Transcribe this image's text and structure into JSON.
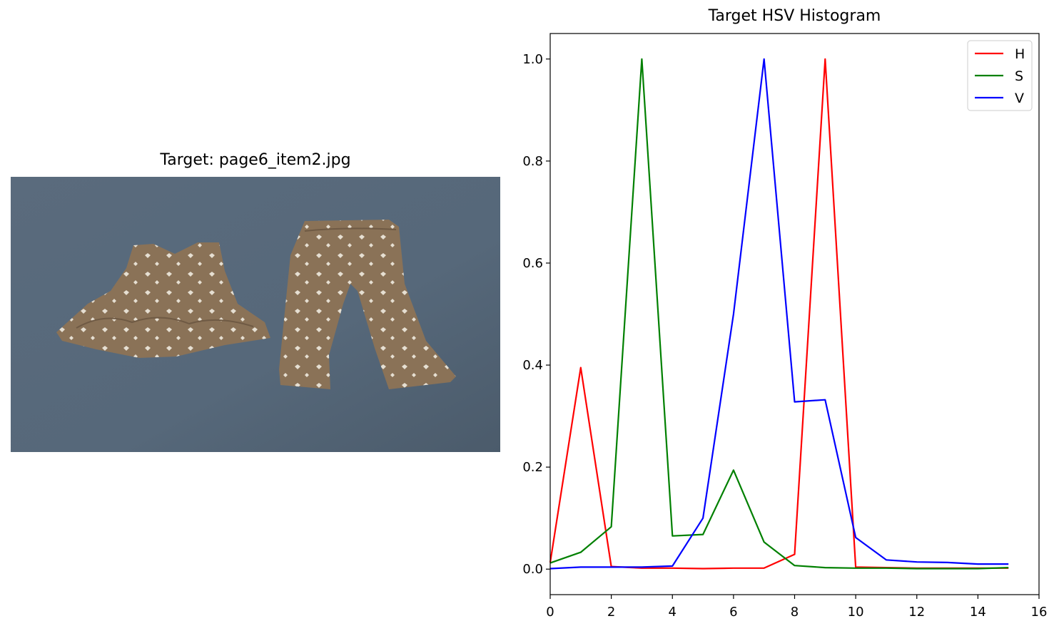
{
  "photo_panel": {
    "title": "Target: page6_item2.jpg",
    "colors": {
      "background": "#5b6c7d",
      "garment": "#8a7257",
      "print": "#e6dfd2"
    }
  },
  "chart_data": {
    "type": "line",
    "title": "Target HSV Histogram",
    "xlabel": "",
    "ylabel": "",
    "xlim": [
      0,
      16
    ],
    "ylim": [
      -0.05,
      1.05
    ],
    "xticks": [
      0,
      2,
      4,
      6,
      8,
      10,
      12,
      14,
      16
    ],
    "yticks": [
      0.0,
      0.2,
      0.4,
      0.6,
      0.8,
      1.0
    ],
    "x": [
      0,
      1,
      2,
      3,
      4,
      5,
      6,
      7,
      8,
      9,
      10,
      11,
      12,
      13,
      14,
      15
    ],
    "grid": false,
    "legend_position": "top-right",
    "series": [
      {
        "name": "H",
        "color": "#ff0000",
        "values": [
          0.013,
          0.395,
          0.005,
          0.002,
          0.002,
          0.001,
          0.002,
          0.002,
          0.029,
          1.0,
          0.004,
          0.003,
          0.002,
          0.002,
          0.002,
          0.002
        ]
      },
      {
        "name": "S",
        "color": "#008000",
        "values": [
          0.012,
          0.033,
          0.083,
          1.0,
          0.065,
          0.068,
          0.194,
          0.053,
          0.007,
          0.003,
          0.002,
          0.002,
          0.001,
          0.001,
          0.001,
          0.003
        ]
      },
      {
        "name": "V",
        "color": "#0000ff",
        "values": [
          0.001,
          0.004,
          0.004,
          0.004,
          0.006,
          0.1,
          0.5,
          1.0,
          0.328,
          0.332,
          0.062,
          0.018,
          0.014,
          0.013,
          0.01,
          0.01
        ]
      }
    ]
  }
}
